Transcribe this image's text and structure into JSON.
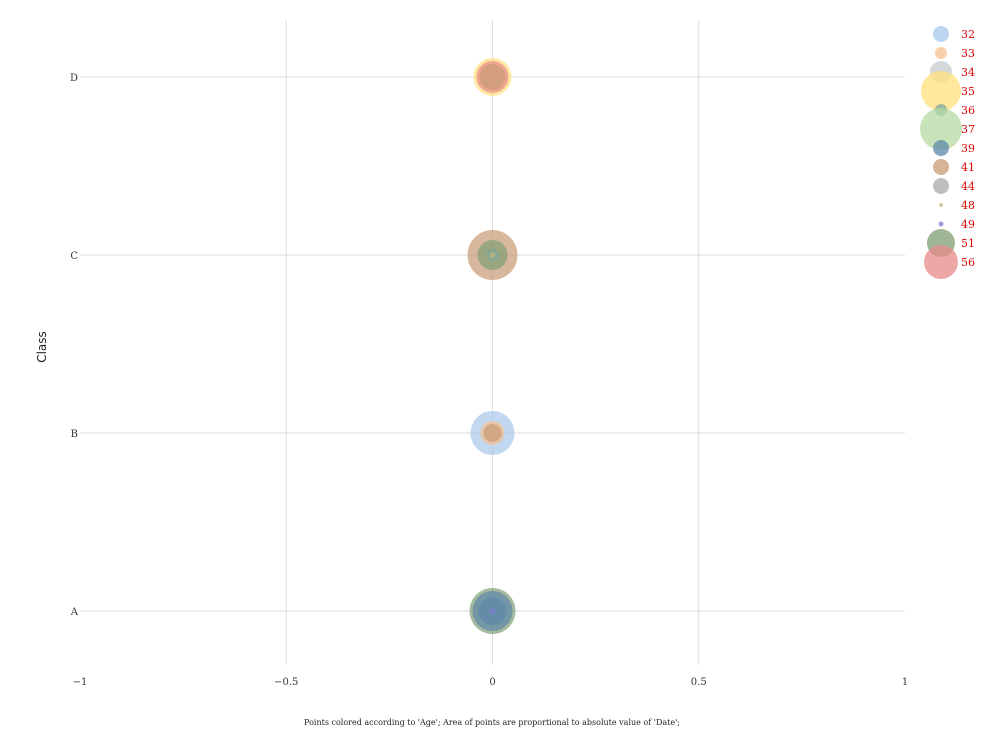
{
  "chart_data": {
    "type": "scatter",
    "title": "",
    "xlabel": "",
    "ylabel": "Class",
    "caption": "Points colored according to 'Age'; Area of points are proportional to absolute value of 'Date';",
    "xlim": [
      -1,
      1
    ],
    "x_ticks": [
      "−1",
      "−0.5",
      "0",
      "0.5",
      "1"
    ],
    "x_tick_values": [
      -1,
      -0.5,
      0,
      0.5,
      1
    ],
    "categories": [
      "A",
      "B",
      "C",
      "D"
    ],
    "grid": true,
    "legend_position": "top-right",
    "legend_title": "",
    "size_encoding": "abs(Date)",
    "color_encoding": "Age",
    "legend": [
      {
        "label": "32",
        "color": "#a6c8ea",
        "size": 8
      },
      {
        "label": "33",
        "color": "#f7c08e",
        "size": 6
      },
      {
        "label": "34",
        "color": "#c8ccd0",
        "size": 11
      },
      {
        "label": "35",
        "color": "#ffe07a",
        "size": 20
      },
      {
        "label": "36",
        "color": "#7aa69a",
        "size": 6
      },
      {
        "label": "37",
        "color": "#b5d9a1",
        "size": 21
      },
      {
        "label": "39",
        "color": "#5e88aa",
        "size": 8
      },
      {
        "label": "41",
        "color": "#c79a74",
        "size": 8
      },
      {
        "label": "44",
        "color": "#a8a8a8",
        "size": 8
      },
      {
        "label": "48",
        "color": "#c9b37a",
        "size": 2
      },
      {
        "label": "49",
        "color": "#7d7ad0",
        "size": 2.5
      },
      {
        "label": "51",
        "color": "#7f9e73",
        "size": 14
      },
      {
        "label": "56",
        "color": "#e88a8a",
        "size": 17
      }
    ],
    "points": [
      {
        "x": 0,
        "y": "A",
        "age": "51",
        "size": 23
      },
      {
        "x": 0,
        "y": "A",
        "age": "39",
        "size": 20
      },
      {
        "x": 0,
        "y": "A",
        "age": "39",
        "size": 14
      },
      {
        "x": 0,
        "y": "A",
        "age": "49",
        "size": 3
      },
      {
        "x": 0,
        "y": "B",
        "age": "32",
        "size": 22
      },
      {
        "x": 0,
        "y": "B",
        "age": "33",
        "size": 12
      },
      {
        "x": 0,
        "y": "B",
        "age": "41",
        "size": 9
      },
      {
        "x": 0,
        "y": "C",
        "age": "41",
        "size": 25
      },
      {
        "x": 0,
        "y": "C",
        "age": "51",
        "size": 15
      },
      {
        "x": 0,
        "y": "C",
        "age": "36",
        "size": 6
      },
      {
        "x": 0,
        "y": "C",
        "age": "48",
        "size": 3
      },
      {
        "x": 0,
        "y": "D",
        "age": "35",
        "size": 19
      },
      {
        "x": 0,
        "y": "D",
        "age": "56",
        "size": 16
      },
      {
        "x": 0,
        "y": "D",
        "age": "41",
        "size": 13
      }
    ]
  }
}
